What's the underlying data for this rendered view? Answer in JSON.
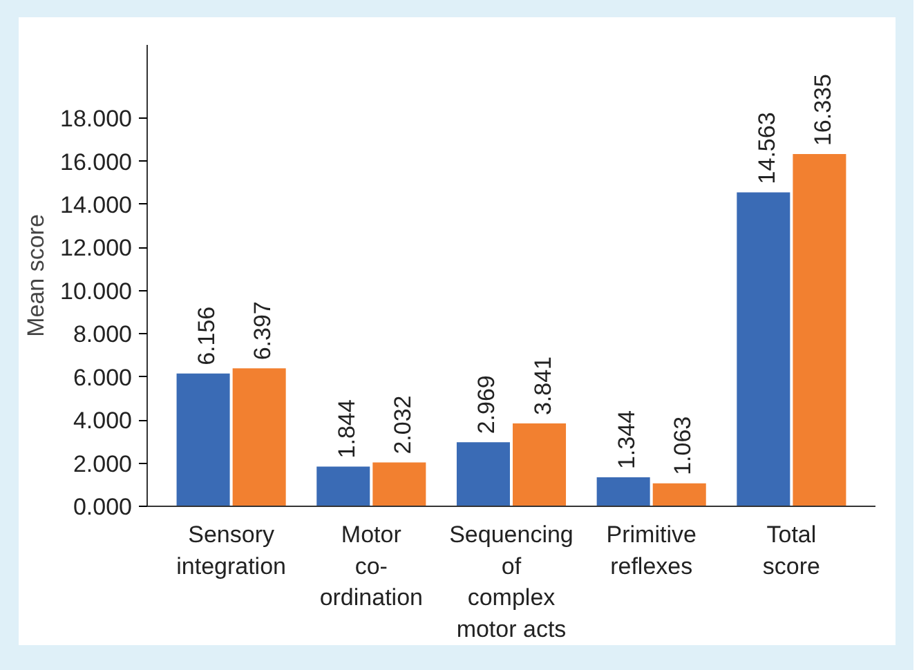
{
  "chart_data": {
    "type": "bar",
    "ylabel": "Mean score",
    "categories": [
      "Sensory\nintegration",
      "Motor\nco-\nordination",
      "Sequencing\nof\ncomplex\nmotor acts",
      "Primitive\nreflexes",
      "Total\nscore"
    ],
    "series": [
      {
        "color": "#3a6bb5",
        "values": [
          6.156,
          1.844,
          2.969,
          1.344,
          14.563
        ]
      },
      {
        "color": "#f28030",
        "values": [
          6.397,
          2.032,
          3.841,
          1.063,
          16.335
        ]
      }
    ],
    "ylim": [
      0,
      21.4
    ],
    "yticks": [
      {
        "value": 0,
        "label": "0.000"
      },
      {
        "value": 2,
        "label": "2.000"
      },
      {
        "value": 4,
        "label": "4.000"
      },
      {
        "value": 6,
        "label": "6.000"
      },
      {
        "value": 8,
        "label": "8.000"
      },
      {
        "value": 10,
        "label": "10.000"
      },
      {
        "value": 12,
        "label": "12.000"
      },
      {
        "value": 14,
        "label": "14.000"
      },
      {
        "value": 16,
        "label": "16.000"
      },
      {
        "value": 18,
        "label": "18.000"
      }
    ],
    "data_labels": true,
    "grid": false
  }
}
